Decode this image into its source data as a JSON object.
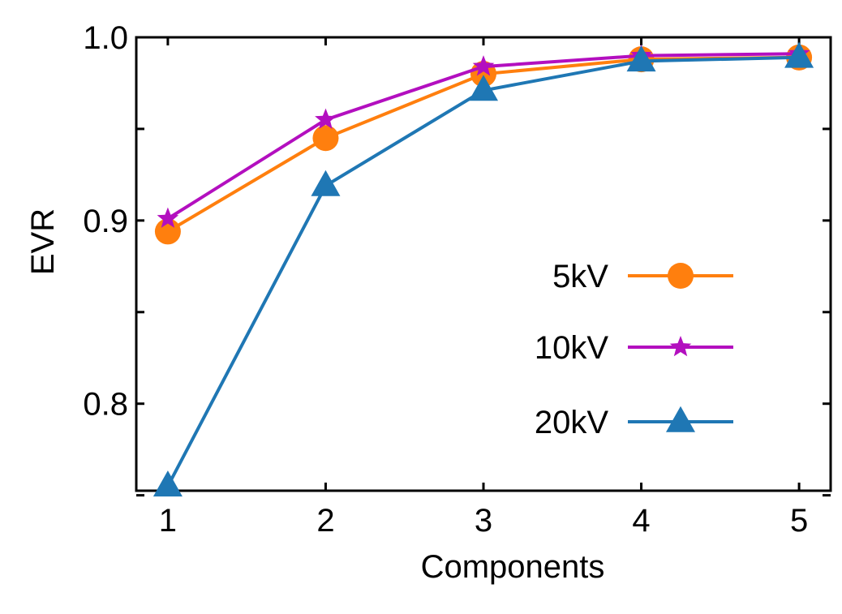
{
  "chart_data": {
    "type": "line",
    "title": "",
    "xlabel": "Components",
    "ylabel": "EVR",
    "x": [
      1,
      2,
      3,
      4,
      5
    ],
    "x_ticks": [
      "1",
      "2",
      "3",
      "4",
      "5"
    ],
    "xlim": [
      0.8,
      5.2
    ],
    "ylim": [
      0.7525,
      1.0
    ],
    "y_tick_values": [
      0.8,
      0.9,
      1.0
    ],
    "y_tick_labels": [
      "0.8",
      "0.9",
      "1.0"
    ],
    "y_minor_tick_values": [
      0.75,
      0.85,
      0.95
    ],
    "grid": false,
    "legend_position": "right",
    "series": [
      {
        "name": "5kV",
        "color": "#ff7f0e",
        "marker": "circle",
        "values": [
          0.894,
          0.945,
          0.98,
          0.988,
          0.989
        ]
      },
      {
        "name": "10kV",
        "color": "#b30fbf",
        "marker": "star",
        "values": [
          0.901,
          0.955,
          0.984,
          0.99,
          0.991
        ]
      },
      {
        "name": "20kV",
        "color": "#1f77b4",
        "marker": "triangle",
        "values": [
          0.755,
          0.919,
          0.971,
          0.987,
          0.989
        ]
      }
    ]
  }
}
